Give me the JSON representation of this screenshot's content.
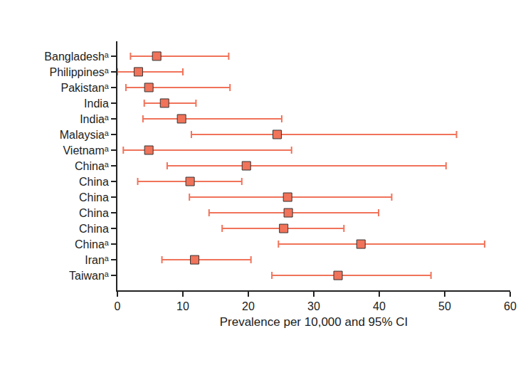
{
  "chart_data": {
    "type": "scatter",
    "marker": "square",
    "color": "#f0735a",
    "grid": false,
    "categories": [
      "Bangladeshᵃ",
      "Philippinesᵃ",
      "Pakistanᵃ",
      "India",
      "Indiaᵃ",
      "Malaysiaᵃ",
      "Vietnamᵃ",
      "Chinaᵃ",
      "China",
      "China",
      "China",
      "China",
      "Chinaᵃ",
      "Iranᵃ",
      "Taiwanᵃ"
    ],
    "values": [
      6.0,
      3.2,
      4.8,
      7.2,
      9.8,
      24.4,
      4.8,
      19.7,
      11.1,
      26.0,
      26.1,
      25.4,
      37.2,
      11.8,
      33.7
    ],
    "ci_low": [
      2.0,
      0.0,
      1.3,
      4.1,
      3.9,
      11.3,
      0.9,
      7.6,
      3.1,
      11.0,
      14.0,
      16.0,
      24.6,
      6.8,
      23.6
    ],
    "ci_high": [
      17.0,
      10.0,
      17.2,
      12.0,
      25.1,
      51.8,
      26.6,
      50.2,
      19.0,
      41.9,
      39.9,
      34.6,
      56.1,
      20.4,
      47.9
    ],
    "xlabel": "Prevalence per 10,000 and 95% CI",
    "xlim": [
      0,
      60
    ],
    "xticks": [
      0,
      10,
      20,
      30,
      40,
      50,
      60
    ]
  }
}
